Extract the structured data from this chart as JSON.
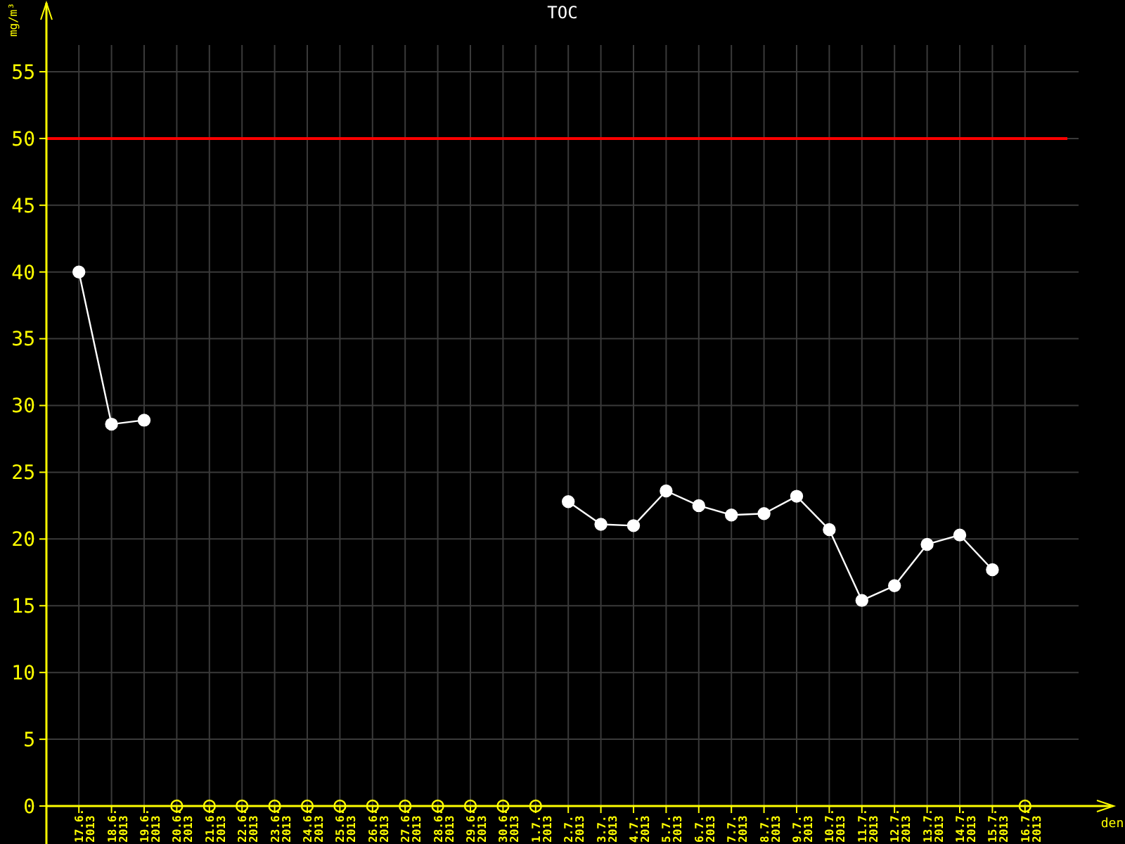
{
  "chart_data": {
    "type": "line",
    "title": "TOC",
    "ylabel": "mg/m³",
    "xlabel": "den",
    "categories": [
      "17.6.2013",
      "18.6.2013",
      "19.6.2013",
      "20.6.2013",
      "21.6.2013",
      "22.6.2013",
      "23.6.2013",
      "24.6.2013",
      "25.6.2013",
      "26.6.2013",
      "27.6.2013",
      "28.6.2013",
      "29.6.2013",
      "30.6.2013",
      "1.7.2013",
      "2.7.2013",
      "3.7.2013",
      "4.7.2013",
      "5.7.2013",
      "6.7.2013",
      "7.7.2013",
      "8.7.2013",
      "9.7.2013",
      "10.7.2013",
      "11.7.2013",
      "12.7.2013",
      "13.7.2013",
      "14.7.2013",
      "15.7.2013",
      "16.7.2013"
    ],
    "series": [
      {
        "color": "#ffffff",
        "marker": "circle",
        "values": [
          40,
          28.6,
          28.9,
          null,
          null,
          null,
          null,
          null,
          null,
          null,
          null,
          null,
          null,
          null,
          null,
          22.8,
          21.1,
          21.0,
          23.6,
          22.5,
          21.8,
          21.9,
          23.2,
          20.7,
          15.4,
          16.5,
          19.6,
          20.3,
          17.7,
          null
        ]
      },
      {
        "type": "scatter",
        "color": "#ffff00",
        "marker": "circle",
        "values": [
          null,
          null,
          null,
          0,
          0,
          0,
          0,
          0,
          0,
          0,
          0,
          0,
          0,
          0,
          0,
          null,
          null,
          null,
          null,
          null,
          null,
          null,
          null,
          null,
          null,
          null,
          null,
          null,
          null,
          0
        ]
      }
    ],
    "ylim": [
      0,
      57
    ],
    "yticks": [
      0,
      5,
      10,
      15,
      20,
      25,
      30,
      35,
      40,
      45,
      50,
      55
    ],
    "ref_lines": [
      {
        "axis": "y",
        "value": 50,
        "color": "#ff0000"
      }
    ],
    "grid": true
  }
}
